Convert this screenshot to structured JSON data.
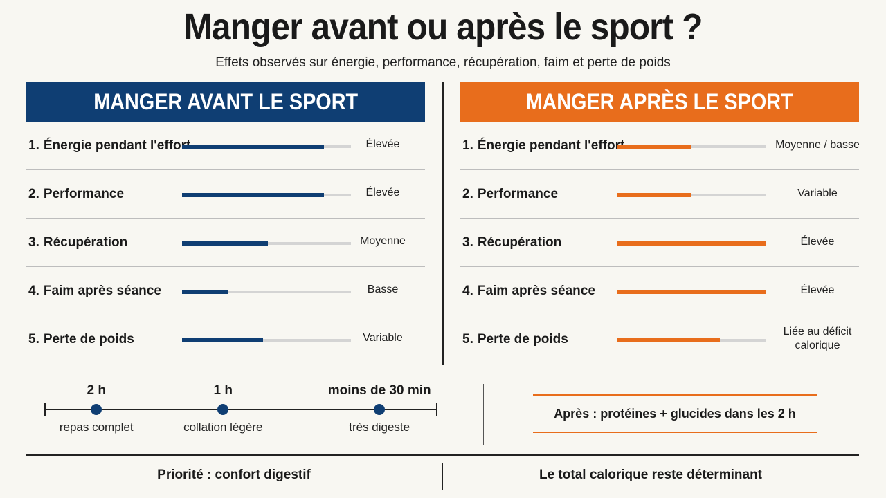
{
  "header": {
    "title": "Manger avant ou après le sport ?",
    "subtitle": "Effets observés sur énergie, performance, récupération, faim et perte de poids"
  },
  "colors": {
    "before": "#0f3e73",
    "after": "#e86d1c"
  },
  "before": {
    "heading": "MANGER AVANT LE SPORT",
    "rows": [
      {
        "num": "1.",
        "label": "Énergie pendant l'effort",
        "value": "Élevée",
        "level": 0.84
      },
      {
        "num": "2.",
        "label": "Performance",
        "value": "Élevée",
        "level": 0.84
      },
      {
        "num": "3.",
        "label": "Récupération",
        "value": "Moyenne",
        "level": 0.51
      },
      {
        "num": "4.",
        "label": "Faim après séance",
        "value": "Basse",
        "level": 0.27
      },
      {
        "num": "5.",
        "label": "Perte de poids",
        "value": "Variable",
        "level": 0.48
      }
    ]
  },
  "after": {
    "heading": "MANGER APRÈS LE SPORT",
    "rows": [
      {
        "num": "1.",
        "label": "Énergie pendant l'effort",
        "value": "Moyenne / basse",
        "level": 0.5
      },
      {
        "num": "2.",
        "label": "Performance",
        "value": "Variable",
        "level": 0.5
      },
      {
        "num": "3.",
        "label": "Récupération",
        "value": "Élevée",
        "level": 1.0
      },
      {
        "num": "4.",
        "label": "Faim après séance",
        "value": "Élevée",
        "level": 1.0
      },
      {
        "num": "5.",
        "label": "Perte de poids",
        "value": "Liée au déficit calorique",
        "level": 0.69
      }
    ]
  },
  "timeline": {
    "points": [
      {
        "time": "2 h",
        "desc": "repas complet",
        "pos": 0.135
      },
      {
        "time": "1 h",
        "desc": "collation légère",
        "pos": 0.455
      },
      {
        "time": "moins de 30 min",
        "desc": "très digeste",
        "pos": 0.85
      }
    ]
  },
  "after_note": "Après : protéines + glucides dans les 2 h",
  "footer": {
    "left": "Priorité : confort digestif",
    "right": "Le total calorique reste déterminant"
  }
}
